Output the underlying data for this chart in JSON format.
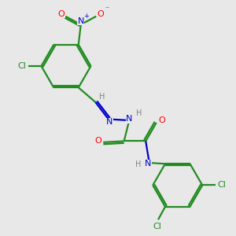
{
  "bg_color": "#e8e8e8",
  "bond_color": "#228B22",
  "n_color": "#0000CD",
  "o_color": "#FF0000",
  "cl_color": "#228B22",
  "h_color": "#808080",
  "line_width": 1.6,
  "fig_size": [
    3.0,
    3.0
  ],
  "dpi": 100,
  "xlim": [
    0,
    10
  ],
  "ylim": [
    0,
    10
  ]
}
